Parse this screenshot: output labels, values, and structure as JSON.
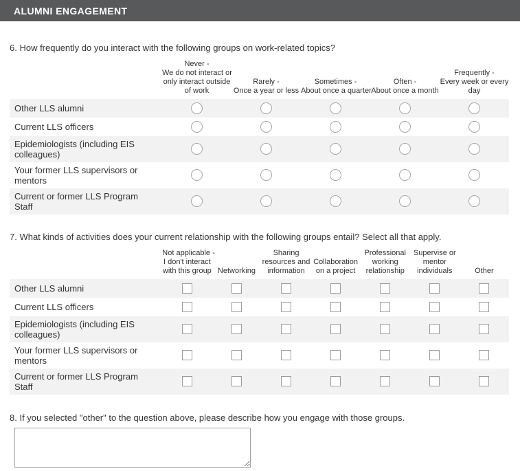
{
  "header": {
    "title": "ALUMNI ENGAGEMENT"
  },
  "colors": {
    "header_bg": "#58595b",
    "header_text": "#ffffff",
    "row_shade": "#f2f2f2",
    "control_border": "#a6a6a6",
    "body_text": "#333333"
  },
  "questions": {
    "q6": {
      "label": "6. How frequently do you interact with the following groups on work-related topics?",
      "type": "radio-matrix",
      "columns": [
        {
          "id": "never",
          "lines": [
            "Never -",
            "We do not interact or",
            "only interact outside",
            "of work"
          ]
        },
        {
          "id": "rarely",
          "lines": [
            "Rarely -",
            "Once a year or less"
          ]
        },
        {
          "id": "sometimes",
          "lines": [
            "Sometimes -",
            "About once a quarter"
          ]
        },
        {
          "id": "often",
          "lines": [
            "Often -",
            "About once a month"
          ]
        },
        {
          "id": "frequently",
          "lines": [
            "Frequently -",
            "Every week or every",
            "day"
          ]
        }
      ],
      "rows": [
        "Other LLS alumni",
        "Current LLS officers",
        "Epidemiologists (including EIS colleagues)",
        "Your former LLS supervisors or mentors",
        "Current or former LLS Program Staff"
      ],
      "selected": []
    },
    "q7": {
      "label": "7. What kinds of activities does your current relationship with the following groups entail? Select all that apply.",
      "type": "checkbox-matrix",
      "columns": [
        {
          "id": "not-applicable",
          "lines": [
            "Not applicable -",
            "I don't interact",
            "with this group"
          ]
        },
        {
          "id": "networking",
          "lines": [
            "Networking"
          ]
        },
        {
          "id": "sharing",
          "lines": [
            "Sharing",
            "resources and",
            "information"
          ]
        },
        {
          "id": "collaboration",
          "lines": [
            "Collaboration",
            "on a project"
          ]
        },
        {
          "id": "professional",
          "lines": [
            "Professional",
            "working",
            "relationship"
          ]
        },
        {
          "id": "supervise",
          "lines": [
            "Supervise or",
            "mentor",
            "individuals"
          ]
        },
        {
          "id": "other",
          "lines": [
            "Other"
          ]
        }
      ],
      "rows": [
        "Other LLS alumni",
        "Current LLS officers",
        "Epidemiologists (including EIS colleagues)",
        "Your former LLS supervisors or mentors",
        "Current or former LLS Program Staff"
      ],
      "checked": []
    },
    "q8": {
      "label": "8. If you selected \"other\" to the question above, please describe how you engage with those groups.",
      "type": "textarea",
      "value": "",
      "placeholder": ""
    }
  }
}
